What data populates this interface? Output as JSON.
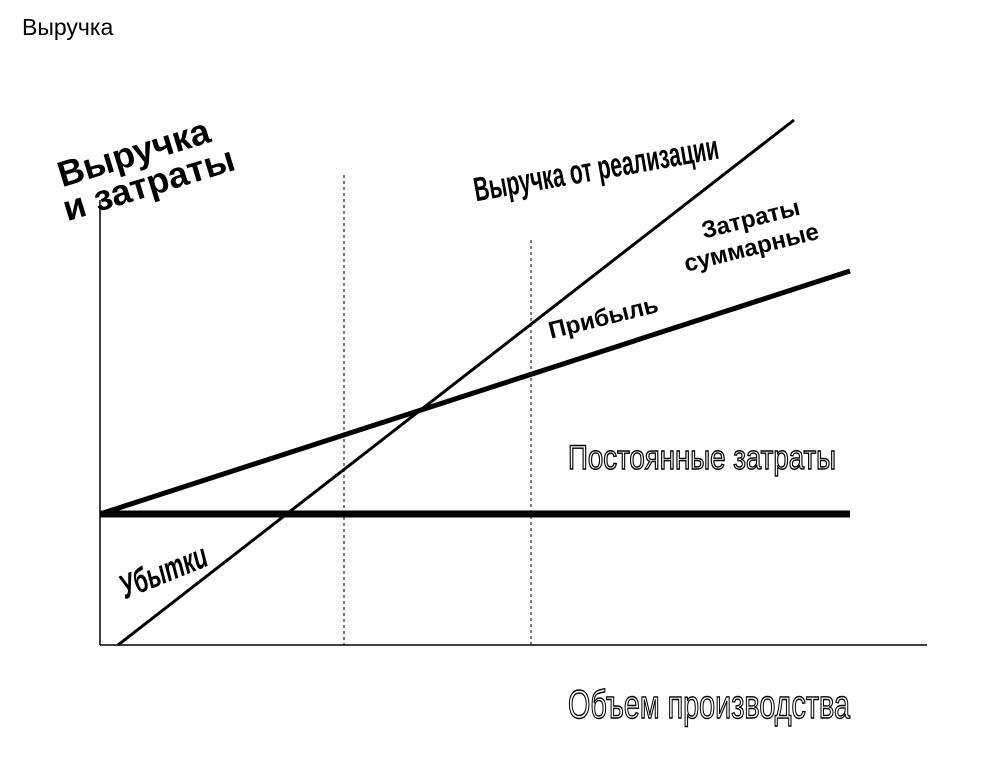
{
  "title": "Выручка",
  "diagram": {
    "y_axis_label": [
      "Выручка",
      "и затраты"
    ],
    "x_axis_label": "Объем производства",
    "lines": {
      "revenue": "Выручка от реализации",
      "total_costs": [
        "Затраты",
        "суммарные"
      ],
      "profit": "Прибыль",
      "fixed_costs": "Постоянные затраты",
      "losses": "Убытки"
    },
    "colors": {
      "ink": "#000000",
      "background": "#ffffff"
    }
  }
}
